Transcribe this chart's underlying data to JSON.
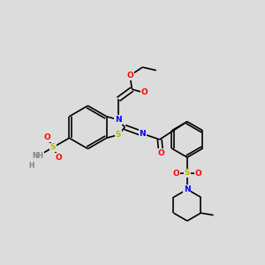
{
  "background_color": "#dcdcdc",
  "bond_color": "#000000",
  "bond_width": 1.2,
  "atom_colors": {
    "N": "#0000ff",
    "O": "#ff0000",
    "S": "#bbbb00",
    "H": "#808080",
    "C": "#000000"
  },
  "fig_size": [
    3.0,
    3.0
  ],
  "dpi": 100,
  "xlim": [
    0,
    10
  ],
  "ylim": [
    0,
    10
  ]
}
